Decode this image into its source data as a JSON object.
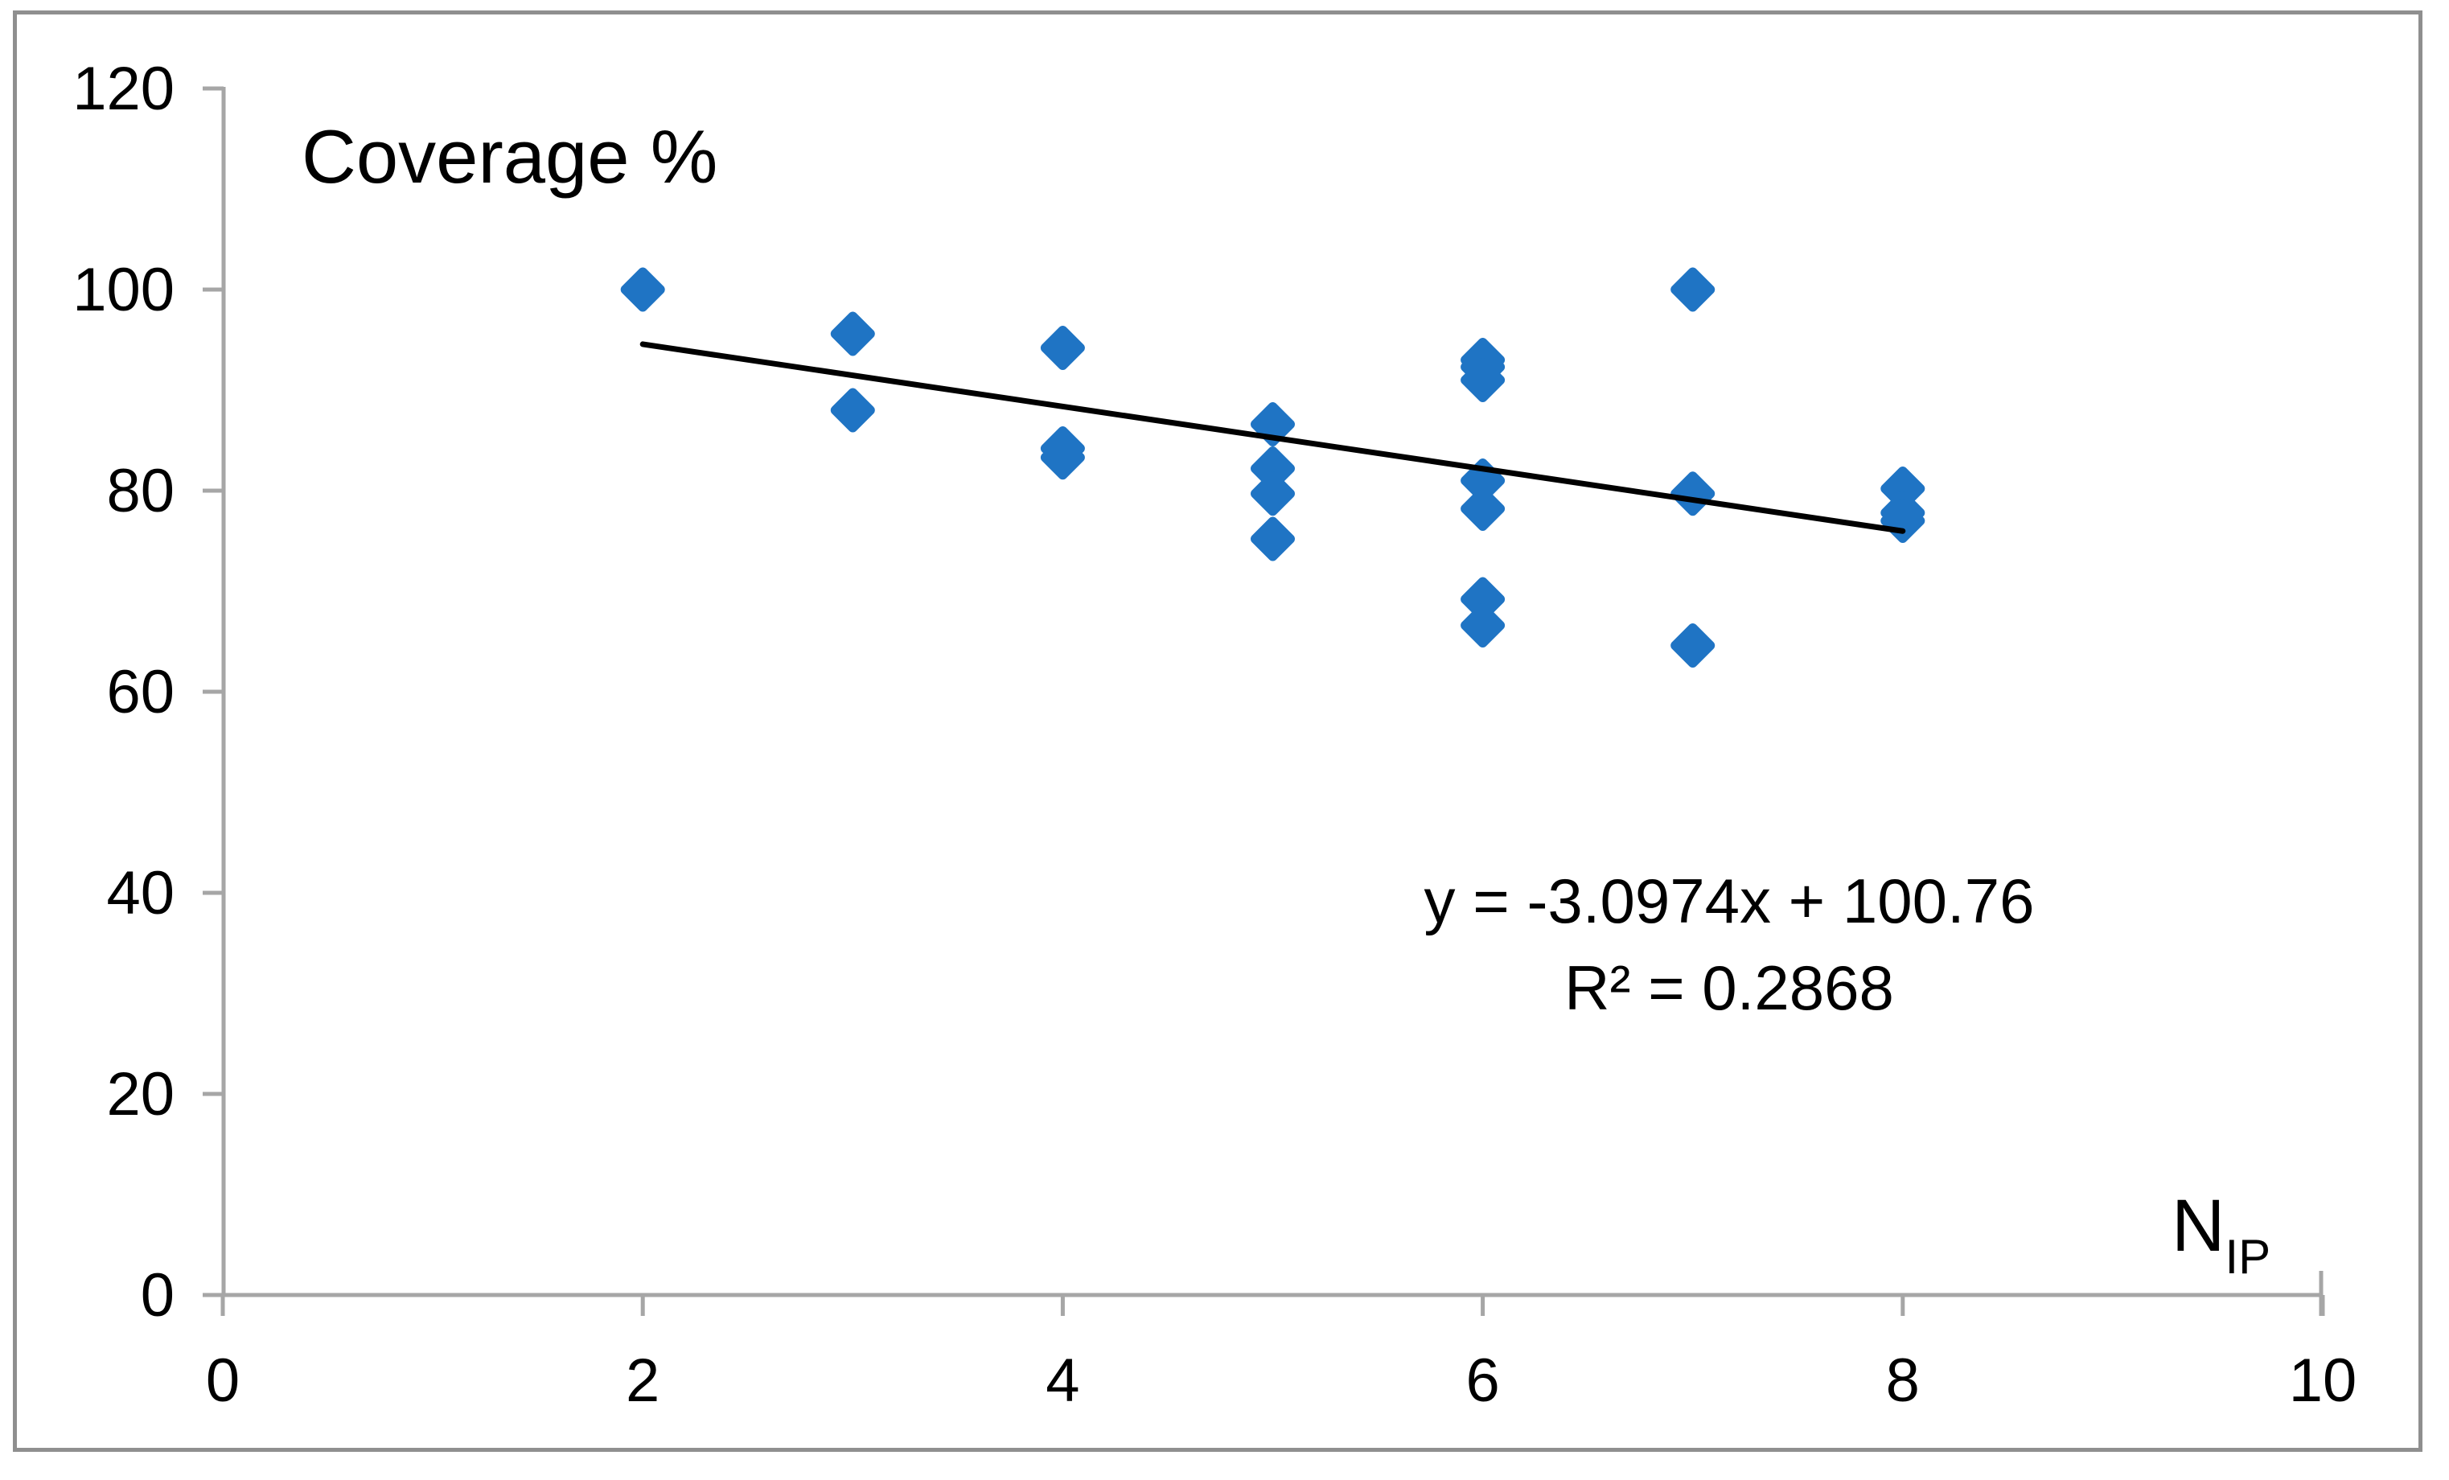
{
  "chart_data": {
    "type": "scatter",
    "title": "Coverage %",
    "xlabel_main": "N",
    "xlabel_sub": "IP",
    "ylabel": "Coverage %",
    "xlim": [
      0,
      10
    ],
    "ylim": [
      0,
      120
    ],
    "x_ticks": [
      "0",
      "2",
      "4",
      "6",
      "8",
      "10"
    ],
    "y_ticks": [
      "0",
      "20",
      "40",
      "60",
      "80",
      "100",
      "120"
    ],
    "grid": false,
    "legend": "none",
    "marker_shape": "diamond",
    "marker_color": "#1f74c4",
    "axis_color": "#a6a6a6",
    "trendline_color": "#000000",
    "points": [
      {
        "x": 2,
        "y": 100.0
      },
      {
        "x": 3,
        "y": 95.6
      },
      {
        "x": 3,
        "y": 88.0
      },
      {
        "x": 4,
        "y": 94.2
      },
      {
        "x": 4,
        "y": 84.2
      },
      {
        "x": 4,
        "y": 83.3
      },
      {
        "x": 5,
        "y": 86.6
      },
      {
        "x": 5,
        "y": 82.2
      },
      {
        "x": 5,
        "y": 79.7
      },
      {
        "x": 5,
        "y": 75.2
      },
      {
        "x": 6,
        "y": 93.0
      },
      {
        "x": 6,
        "y": 92.3
      },
      {
        "x": 6,
        "y": 91.0
      },
      {
        "x": 6,
        "y": 81.0
      },
      {
        "x": 6,
        "y": 78.2
      },
      {
        "x": 6,
        "y": 69.2
      },
      {
        "x": 6,
        "y": 66.6
      },
      {
        "x": 7,
        "y": 100.0
      },
      {
        "x": 7,
        "y": 79.7
      },
      {
        "x": 7,
        "y": 64.6
      },
      {
        "x": 8,
        "y": 80.2
      },
      {
        "x": 8,
        "y": 77.8
      },
      {
        "x": 8,
        "y": 77.0
      }
    ],
    "trendline": {
      "slope": -3.0974,
      "intercept": 100.76,
      "x_start": 2,
      "x_end": 8,
      "equation_label": "y = -3.0974x + 100.76",
      "r_squared_label": "R² = 0.2868"
    }
  }
}
